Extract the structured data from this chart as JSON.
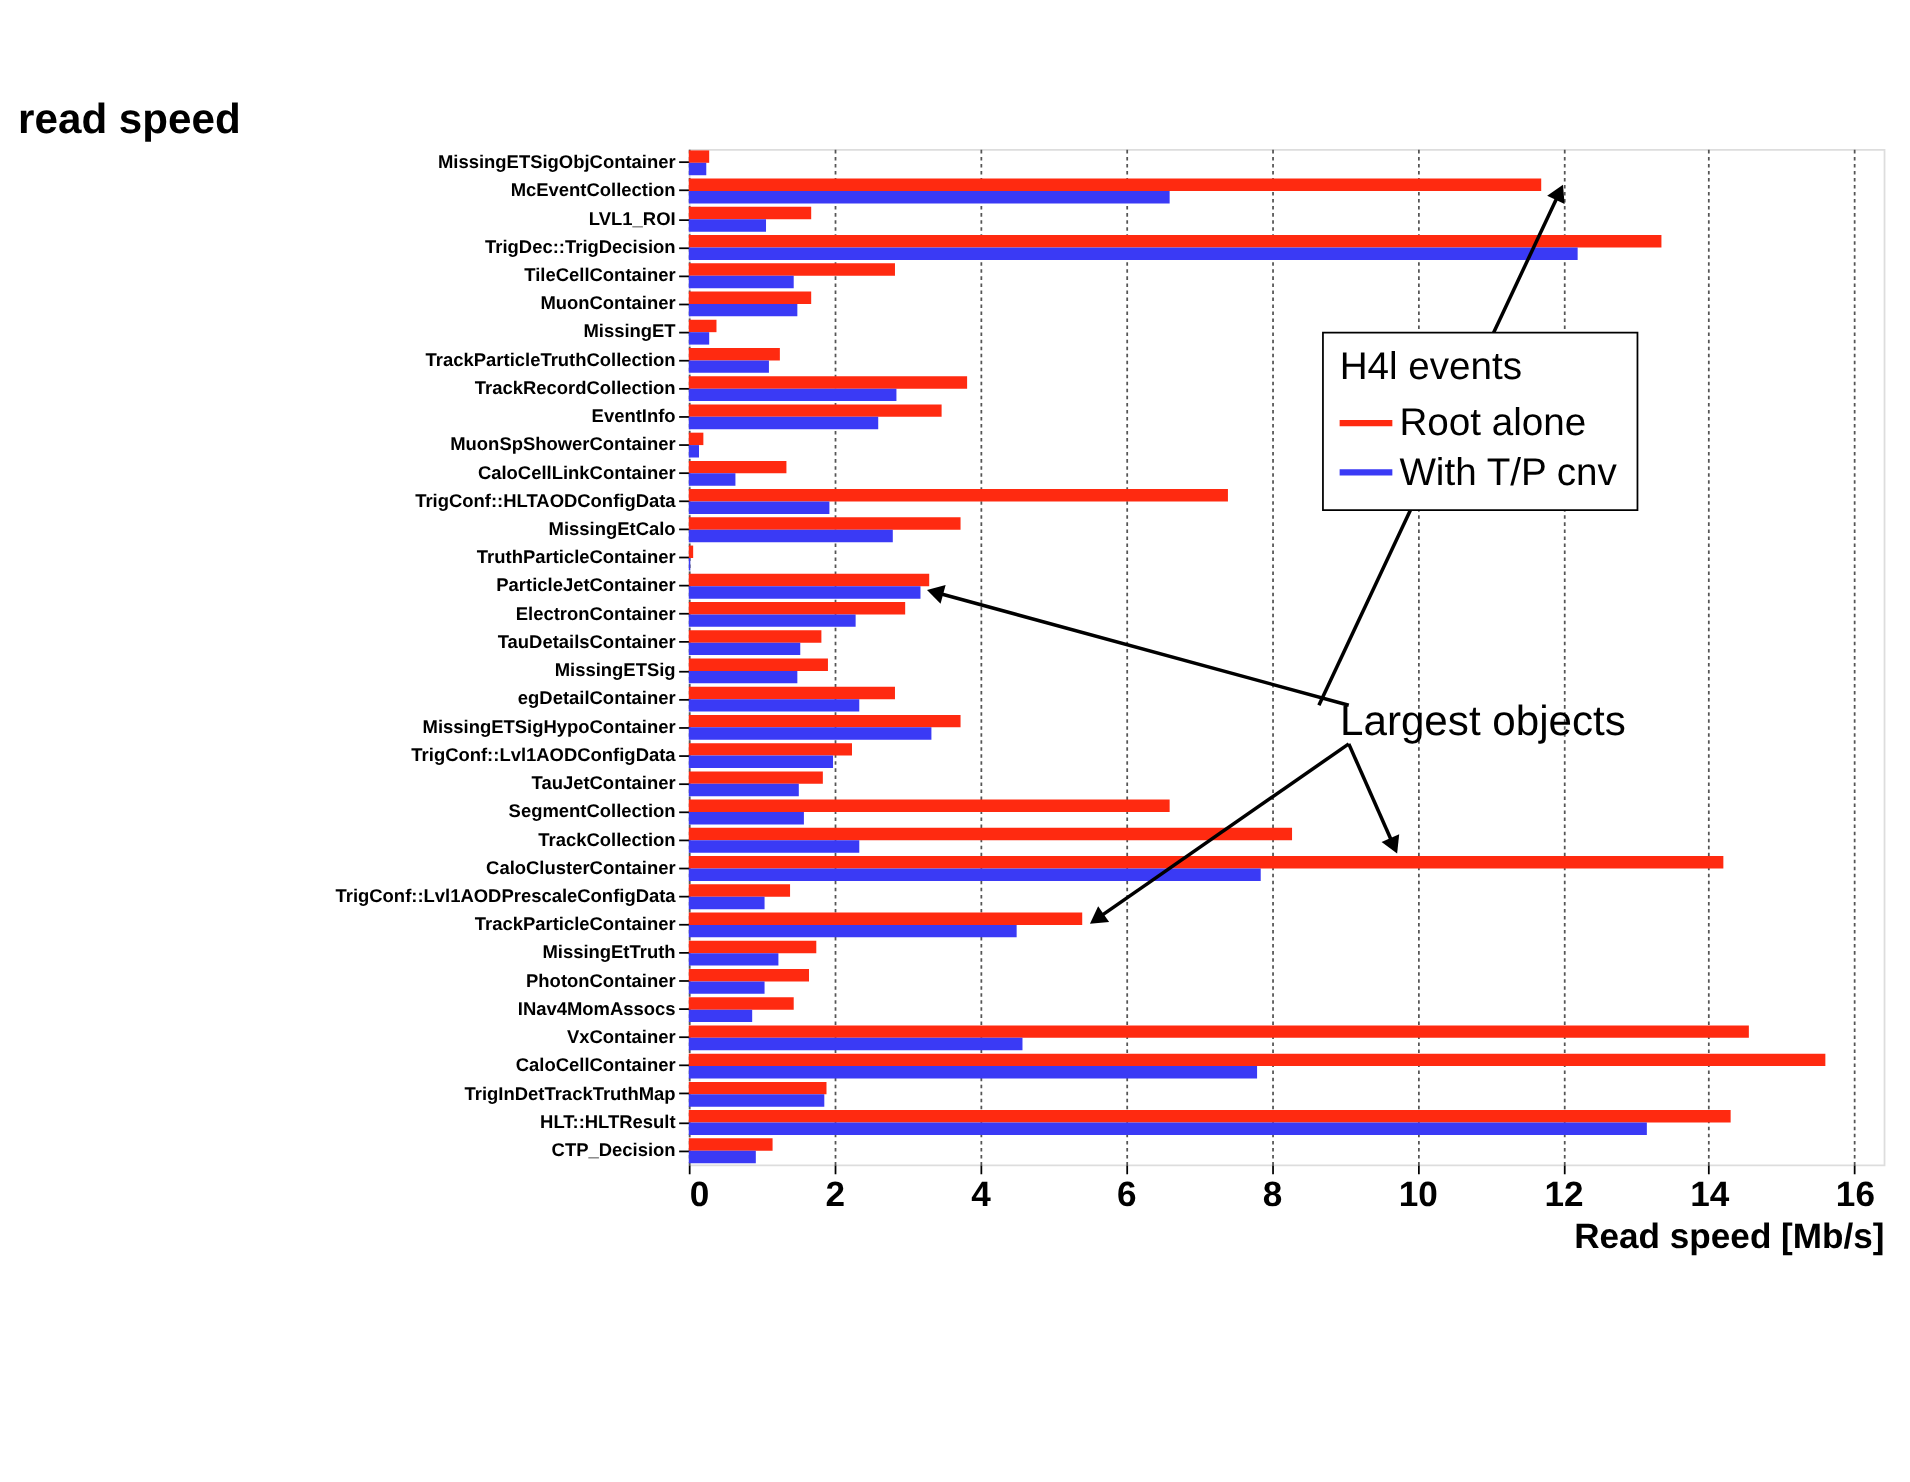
{
  "chart_data": {
    "type": "bar",
    "orientation": "horizontal",
    "title": "read speed",
    "xlabel": "Read speed [Mb/s]",
    "legend_title": "H4l events",
    "categories": [
      "MissingETSigObjContainer",
      "McEventCollection",
      "LVL1_ROI",
      "TrigDec::TrigDecision",
      "TileCellContainer",
      "MuonContainer",
      "MissingET",
      "TrackParticleTruthCollection",
      "TrackRecordCollection",
      "EventInfo",
      "MuonSpShowerContainer",
      "CaloCellLinkContainer",
      "TrigConf::HLTAODConfigData",
      "MissingEtCalo",
      "TruthParticleContainer",
      "ParticleJetContainer",
      "ElectronContainer",
      "TauDetailsContainer",
      "MissingETSig",
      "egDetailContainer",
      "MissingETSigHypoContainer",
      "TrigConf::Lvl1AODConfigData",
      "TauJetContainer",
      "SegmentCollection",
      "TrackCollection",
      "CaloClusterContainer",
      "TrigConf::Lvl1AODPrescaleConfigData",
      "TrackParticleContainer",
      "MissingEtTruth",
      "PhotonContainer",
      "INav4MomAssocs",
      "VxContainer",
      "CaloCellContainer",
      "TrigInDetTrackTruthMap",
      "HLT::HLTResult",
      "CTP_Decision"
    ],
    "series": [
      {
        "name": "Root alone",
        "color": "#ff2a10",
        "values": [
          0.28,
          11.7,
          1.68,
          13.35,
          2.83,
          1.68,
          0.38,
          1.25,
          3.82,
          3.47,
          0.2,
          1.34,
          7.4,
          3.73,
          0.06,
          3.3,
          2.97,
          1.82,
          1.91,
          2.83,
          3.73,
          2.24,
          1.84,
          6.6,
          8.28,
          14.2,
          1.39,
          5.4,
          1.75,
          1.65,
          1.44,
          14.55,
          15.6,
          1.89,
          14.3,
          1.15
        ]
      },
      {
        "name": "With T/P cnv",
        "color": "#3a3af5",
        "values": [
          0.24,
          6.6,
          1.06,
          12.2,
          1.44,
          1.49,
          0.28,
          1.1,
          2.85,
          2.6,
          0.14,
          0.64,
          1.93,
          2.8,
          0.02,
          3.18,
          2.29,
          1.53,
          1.49,
          2.34,
          3.33,
          1.98,
          1.51,
          1.58,
          2.34,
          7.85,
          1.04,
          4.5,
          1.23,
          1.04,
          0.87,
          4.58,
          7.8,
          1.86,
          13.15,
          0.92
        ]
      }
    ],
    "xlim": [
      0,
      16.4
    ],
    "xticks": [
      0,
      2,
      4,
      6,
      8,
      10,
      12,
      14,
      16
    ],
    "grid": "x",
    "legend": "top right",
    "annotations": [
      {
        "text": "Largest objects",
        "x": 3.18,
        "y": "ParticleJetContainer"
      }
    ]
  }
}
